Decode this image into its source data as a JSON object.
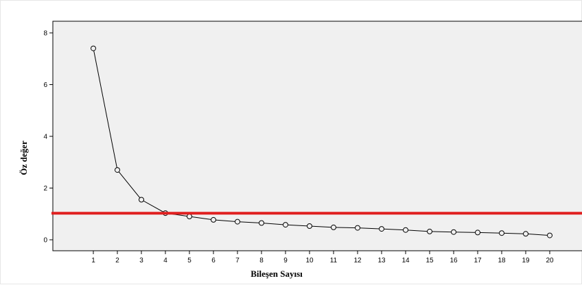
{
  "chart_data": {
    "type": "line",
    "title": "",
    "xlabel": "Bileşen Sayısı",
    "ylabel": "Öz değer",
    "x": [
      1,
      2,
      3,
      4,
      5,
      6,
      7,
      8,
      9,
      10,
      11,
      12,
      13,
      14,
      15,
      16,
      17,
      18,
      19,
      20
    ],
    "series": [
      {
        "values": [
          7.4,
          2.7,
          1.55,
          1.03,
          0.9,
          0.77,
          0.7,
          0.65,
          0.58,
          0.53,
          0.48,
          0.46,
          0.42,
          0.38,
          0.32,
          0.3,
          0.28,
          0.26,
          0.23,
          0.17
        ],
        "color": "#000000",
        "marker": "open-circle"
      }
    ],
    "reference_line": {
      "y": 1.0,
      "color": "#e02020",
      "orientation": "horizontal"
    },
    "xticks": [
      "1",
      "2",
      "3",
      "4",
      "5",
      "6",
      "7",
      "8",
      "9",
      "10",
      "11",
      "12",
      "13",
      "14",
      "15",
      "16",
      "17",
      "18",
      "19",
      "20"
    ],
    "yticks": [
      "0",
      "2",
      "4",
      "6",
      "8"
    ],
    "ylim": [
      0,
      8
    ],
    "grid": false,
    "plot_background": "#f0f0f0"
  }
}
